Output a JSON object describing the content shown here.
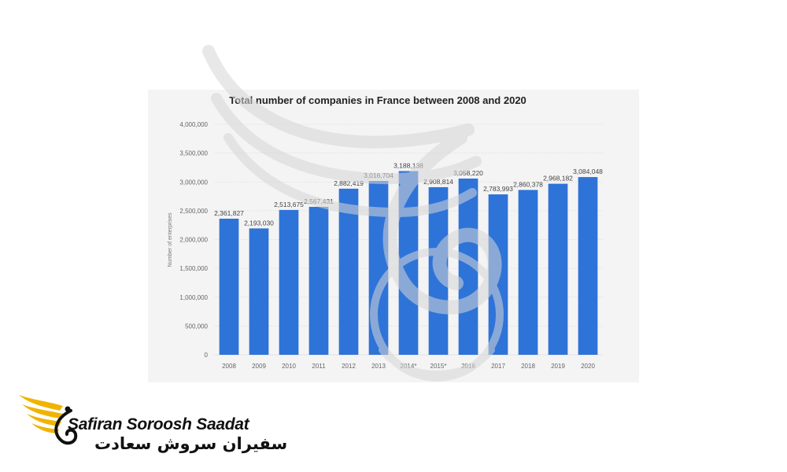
{
  "chart_data": {
    "type": "bar",
    "title": "Total number of companies in France between 2008 and 2020",
    "ylabel": "Number of enterprises",
    "xlabel": "",
    "categories": [
      "2008",
      "2009",
      "2010",
      "2011",
      "2012",
      "2013",
      "2014*",
      "2015*",
      "2016",
      "2017",
      "2018",
      "2019",
      "2020"
    ],
    "values": [
      2361827,
      2193030,
      2513675,
      2567431,
      2882419,
      3016704,
      3188138,
      2908814,
      3058220,
      2783993,
      2860378,
      2968182,
      3084048
    ],
    "value_labels": [
      "2,361,827",
      "2,193,030",
      "2,513,675",
      "2,567,431",
      "2,882,419",
      "3,016,704",
      "3,188,138",
      "2,908,814",
      "3,058,220",
      "2,783,993",
      "2,860,378",
      "2,968,182",
      "3,084,048"
    ],
    "ylim": [
      0,
      4000000
    ],
    "yticks": [
      0,
      500000,
      1000000,
      1500000,
      2000000,
      2500000,
      3000000,
      3500000,
      4000000
    ],
    "ytick_labels": [
      "0",
      "500,000",
      "1,000,000",
      "1,500,000",
      "2,000,000",
      "2,500,000",
      "3,000,000",
      "3,500,000",
      "4,000,000"
    ],
    "grid": true,
    "bar_color": "#2e73d8"
  },
  "logo": {
    "latin_text": "Safiran Soroosh Saadat",
    "farsi_text": "سفیران سروش سعادت",
    "accent_color": "#f0b400"
  }
}
